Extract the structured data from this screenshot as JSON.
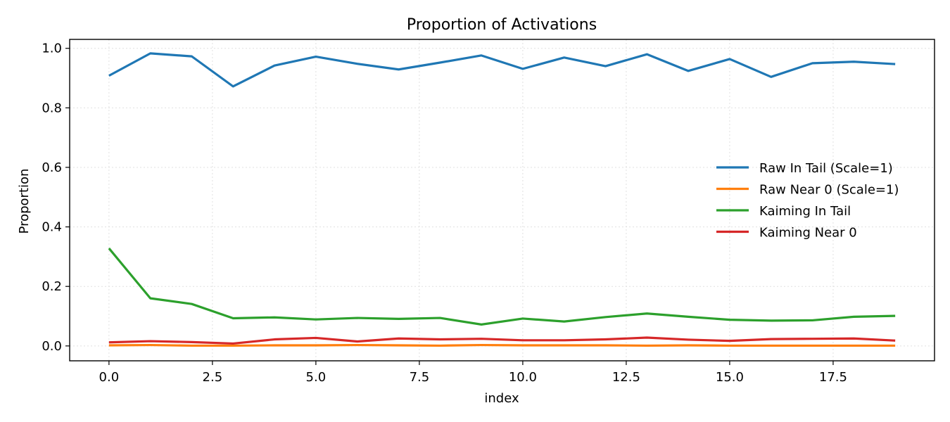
{
  "chart_data": {
    "type": "line",
    "title": "Proportion of Activations",
    "xlabel": "index",
    "ylabel": "Proportion",
    "xlim": [
      -0.95,
      19.95
    ],
    "ylim": [
      -0.05,
      1.03
    ],
    "x_ticks": [
      0.0,
      2.5,
      5.0,
      7.5,
      10.0,
      12.5,
      15.0,
      17.5
    ],
    "x_tick_labels": [
      "0.0",
      "2.5",
      "5.0",
      "7.5",
      "10.0",
      "12.5",
      "15.0",
      "17.5"
    ],
    "y_ticks": [
      0.0,
      0.2,
      0.4,
      0.6,
      0.8,
      1.0
    ],
    "y_tick_labels": [
      "0.0",
      "0.2",
      "0.4",
      "0.6",
      "0.8",
      "1.0"
    ],
    "grid": true,
    "legend_position": "center-right",
    "x": [
      0,
      1,
      2,
      3,
      4,
      5,
      6,
      7,
      8,
      9,
      10,
      11,
      12,
      13,
      14,
      15,
      16,
      17,
      18,
      19
    ],
    "series": [
      {
        "name": "Raw In Tail (Scale=1)",
        "color": "#1f77b4",
        "values": [
          0.908,
          0.983,
          0.973,
          0.872,
          0.942,
          0.972,
          0.948,
          0.929,
          0.952,
          0.976,
          0.931,
          0.969,
          0.94,
          0.98,
          0.924,
          0.964,
          0.904,
          0.95,
          0.955,
          0.947
        ]
      },
      {
        "name": "Raw Near 0 (Scale=1)",
        "color": "#ff7f0e",
        "values": [
          0.002,
          0.003,
          0.001,
          0.001,
          0.002,
          0.002,
          0.003,
          0.002,
          0.001,
          0.003,
          0.002,
          0.002,
          0.002,
          0.001,
          0.002,
          0.001,
          0.001,
          0.001,
          0.001,
          0.001
        ]
      },
      {
        "name": "Kaiming In Tail",
        "color": "#2ca02c",
        "values": [
          0.328,
          0.16,
          0.141,
          0.093,
          0.096,
          0.089,
          0.094,
          0.091,
          0.094,
          0.072,
          0.092,
          0.082,
          0.097,
          0.109,
          0.098,
          0.088,
          0.085,
          0.086,
          0.098,
          0.101
        ]
      },
      {
        "name": "Kaiming Near 0",
        "color": "#d62728",
        "values": [
          0.012,
          0.016,
          0.013,
          0.008,
          0.022,
          0.027,
          0.015,
          0.025,
          0.022,
          0.024,
          0.019,
          0.019,
          0.022,
          0.028,
          0.021,
          0.017,
          0.023,
          0.024,
          0.025,
          0.018
        ]
      }
    ]
  }
}
